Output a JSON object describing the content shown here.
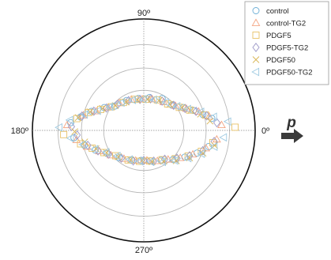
{
  "chart_data": {
    "type": "scatter",
    "projection": "polar",
    "angle_labels": [
      {
        "angle": 90,
        "label": "90º"
      },
      {
        "angle": 180,
        "label": "180º"
      },
      {
        "angle": 0,
        "label": "0º"
      },
      {
        "angle": 270,
        "label": "270º"
      }
    ],
    "radial_range": [
      0,
      1
    ],
    "radial_grid": [
      0.36,
      0.56,
      0.77
    ],
    "grid": true,
    "legend_position": "top-right",
    "arrow": {
      "label": "p",
      "angle": 0
    },
    "series": [
      {
        "name": "control",
        "marker": "circle",
        "color": "#6baed6",
        "points": [
          [
            0.62,
            10
          ],
          [
            0.55,
            15
          ],
          [
            0.48,
            22
          ],
          [
            0.41,
            30
          ],
          [
            0.34,
            42
          ],
          [
            0.33,
            60
          ],
          [
            0.3,
            80
          ],
          [
            0.29,
            100
          ],
          [
            0.31,
            120
          ],
          [
            0.34,
            140
          ],
          [
            0.41,
            150
          ],
          [
            0.5,
            160
          ],
          [
            0.58,
            168
          ],
          [
            0.66,
            174
          ],
          [
            0.63,
            186
          ],
          [
            0.55,
            194
          ],
          [
            0.47,
            202
          ],
          [
            0.39,
            212
          ],
          [
            0.33,
            228
          ],
          [
            0.29,
            248
          ],
          [
            0.27,
            265
          ],
          [
            0.28,
            282
          ],
          [
            0.31,
            300
          ],
          [
            0.37,
            315
          ],
          [
            0.44,
            327
          ],
          [
            0.52,
            337
          ],
          [
            0.6,
            346
          ]
        ]
      },
      {
        "name": "control-TG2",
        "marker": "triangle",
        "color": "#f4a582",
        "points": [
          [
            0.7,
            4
          ],
          [
            0.6,
            12
          ],
          [
            0.52,
            19
          ],
          [
            0.43,
            27
          ],
          [
            0.36,
            38
          ],
          [
            0.31,
            55
          ],
          [
            0.29,
            75
          ],
          [
            0.28,
            93
          ],
          [
            0.3,
            112
          ],
          [
            0.33,
            132
          ],
          [
            0.38,
            147
          ],
          [
            0.46,
            158
          ],
          [
            0.56,
            166
          ],
          [
            0.69,
            176
          ],
          [
            0.61,
            188
          ],
          [
            0.53,
            196
          ],
          [
            0.44,
            205
          ],
          [
            0.37,
            217
          ],
          [
            0.31,
            235
          ],
          [
            0.28,
            255
          ],
          [
            0.27,
            276
          ],
          [
            0.3,
            294
          ],
          [
            0.34,
            310
          ],
          [
            0.41,
            323
          ],
          [
            0.49,
            334
          ],
          [
            0.58,
            344
          ],
          [
            0.66,
            353
          ]
        ]
      },
      {
        "name": "PDGF5",
        "marker": "square",
        "color": "#e8c268",
        "points": [
          [
            0.82,
            2
          ],
          [
            0.57,
            14
          ],
          [
            0.45,
            24
          ],
          [
            0.38,
            33
          ],
          [
            0.32,
            48
          ],
          [
            0.3,
            66
          ],
          [
            0.28,
            86
          ],
          [
            0.29,
            106
          ],
          [
            0.31,
            126
          ],
          [
            0.36,
            144
          ],
          [
            0.43,
            154
          ],
          [
            0.52,
            162
          ],
          [
            0.61,
            170
          ],
          [
            0.72,
            183
          ],
          [
            0.58,
            192
          ],
          [
            0.49,
            199
          ],
          [
            0.41,
            209
          ],
          [
            0.34,
            222
          ],
          [
            0.3,
            242
          ],
          [
            0.28,
            262
          ],
          [
            0.28,
            281
          ],
          [
            0.31,
            302
          ],
          [
            0.38,
            318
          ],
          [
            0.46,
            330
          ],
          [
            0.55,
            340
          ],
          [
            0.63,
            350
          ]
        ]
      },
      {
        "name": "PDGF5-TG2",
        "marker": "diamond",
        "color": "#9e9ac8",
        "points": [
          [
            0.66,
            6
          ],
          [
            0.58,
            13
          ],
          [
            0.5,
            20
          ],
          [
            0.42,
            28
          ],
          [
            0.35,
            40
          ],
          [
            0.31,
            58
          ],
          [
            0.29,
            78
          ],
          [
            0.28,
            97
          ],
          [
            0.3,
            117
          ],
          [
            0.33,
            135
          ],
          [
            0.39,
            149
          ],
          [
            0.48,
            159
          ],
          [
            0.57,
            167
          ],
          [
            0.65,
            177
          ],
          [
            0.6,
            184
          ],
          [
            0.52,
            195
          ],
          [
            0.45,
            204
          ],
          [
            0.38,
            214
          ],
          [
            0.32,
            231
          ],
          [
            0.29,
            251
          ],
          [
            0.27,
            270
          ],
          [
            0.29,
            288
          ],
          [
            0.32,
            306
          ],
          [
            0.39,
            320
          ],
          [
            0.47,
            331
          ],
          [
            0.56,
            341
          ],
          [
            0.64,
            351
          ]
        ]
      },
      {
        "name": "PDGF50",
        "marker": "x",
        "color": "#d9b657",
        "points": [
          [
            0.6,
            8
          ],
          [
            0.53,
            16
          ],
          [
            0.46,
            23
          ],
          [
            0.4,
            31
          ],
          [
            0.33,
            45
          ],
          [
            0.3,
            63
          ],
          [
            0.28,
            83
          ],
          [
            0.28,
            102
          ],
          [
            0.3,
            122
          ],
          [
            0.34,
            139
          ],
          [
            0.42,
            152
          ],
          [
            0.51,
            161
          ],
          [
            0.6,
            169
          ],
          [
            0.62,
            181
          ],
          [
            0.54,
            191
          ],
          [
            0.46,
            201
          ],
          [
            0.39,
            211
          ],
          [
            0.33,
            226
          ],
          [
            0.29,
            246
          ],
          [
            0.27,
            267
          ],
          [
            0.29,
            285
          ],
          [
            0.33,
            303
          ],
          [
            0.4,
            317
          ],
          [
            0.48,
            329
          ],
          [
            0.57,
            339
          ],
          [
            0.65,
            348
          ]
        ]
      },
      {
        "name": "PDGF50-TG2",
        "marker": "left-triangle",
        "color": "#9ecae1",
        "points": [
          [
            0.76,
            6
          ],
          [
            0.64,
            11
          ],
          [
            0.54,
            18
          ],
          [
            0.44,
            26
          ],
          [
            0.37,
            36
          ],
          [
            0.32,
            52
          ],
          [
            0.29,
            72
          ],
          [
            0.28,
            91
          ],
          [
            0.29,
            110
          ],
          [
            0.32,
            129
          ],
          [
            0.37,
            145
          ],
          [
            0.45,
            157
          ],
          [
            0.55,
            165
          ],
          [
            0.67,
            172
          ],
          [
            0.76,
            178
          ],
          [
            0.66,
            186
          ],
          [
            0.56,
            193
          ],
          [
            0.47,
            201
          ],
          [
            0.39,
            210
          ],
          [
            0.33,
            224
          ],
          [
            0.29,
            244
          ],
          [
            0.28,
            263
          ],
          [
            0.29,
            283
          ],
          [
            0.33,
            301
          ],
          [
            0.39,
            316
          ],
          [
            0.47,
            328
          ],
          [
            0.56,
            338
          ],
          [
            0.65,
            347
          ],
          [
            0.72,
            355
          ]
        ]
      }
    ]
  }
}
